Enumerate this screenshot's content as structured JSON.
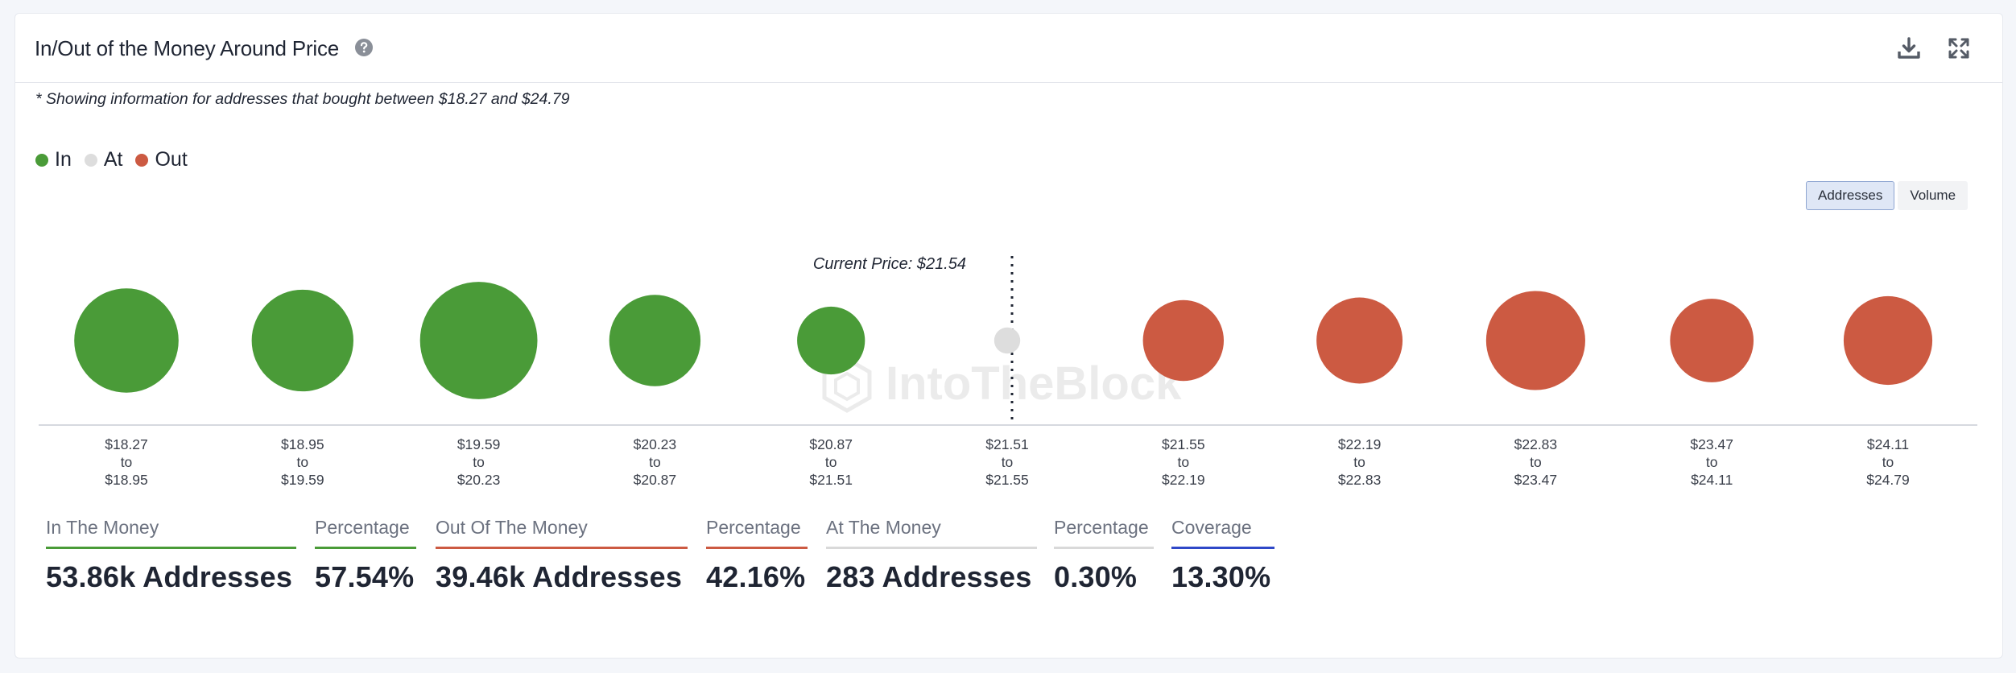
{
  "header": {
    "title": "In/Out of the Money Around Price"
  },
  "note": "* Showing information for addresses that bought between $18.27 and $24.79",
  "legend": [
    {
      "label": "In",
      "color": "#4a9b38"
    },
    {
      "label": "At",
      "color": "#dddddd"
    },
    {
      "label": "Out",
      "color": "#cc5a42"
    }
  ],
  "toggles": {
    "addresses": "Addresses",
    "volume": "Volume"
  },
  "watermark": "IntoTheBlock",
  "chart_data": {
    "type": "bubble",
    "title": "In/Out of the Money Around Price",
    "current_price_label": "Current Price: $21.54",
    "current_price": 21.54,
    "categories": [
      {
        "from": "$18.27",
        "to_word": "to",
        "to": "$18.95",
        "status": "in",
        "relative_size": 40
      },
      {
        "from": "$18.95",
        "to_word": "to",
        "to": "$19.59",
        "status": "in",
        "relative_size": 39
      },
      {
        "from": "$19.59",
        "to_word": "to",
        "to": "$20.23",
        "status": "in",
        "relative_size": 45
      },
      {
        "from": "$20.23",
        "to_word": "to",
        "to": "$20.87",
        "status": "in",
        "relative_size": 35
      },
      {
        "from": "$20.87",
        "to_word": "to",
        "to": "$21.51",
        "status": "in",
        "relative_size": 26
      },
      {
        "from": "$21.51",
        "to_word": "to",
        "to": "$21.55",
        "status": "at",
        "relative_size": 10
      },
      {
        "from": "$21.55",
        "to_word": "to",
        "to": "$22.19",
        "status": "out",
        "relative_size": 31
      },
      {
        "from": "$22.19",
        "to_word": "to",
        "to": "$22.83",
        "status": "out",
        "relative_size": 33
      },
      {
        "from": "$22.83",
        "to_word": "to",
        "to": "$23.47",
        "status": "out",
        "relative_size": 38
      },
      {
        "from": "$23.47",
        "to_word": "to",
        "to": "$24.11",
        "status": "out",
        "relative_size": 32
      },
      {
        "from": "$24.11",
        "to_word": "to",
        "to": "$24.79",
        "status": "out",
        "relative_size": 34
      }
    ],
    "colors": {
      "in": "#4a9b38",
      "at": "#dddddd",
      "out": "#cc5a42"
    }
  },
  "stats": [
    {
      "label": "In The Money",
      "value": "53.86k Addresses",
      "color": "#4a9b38"
    },
    {
      "label": "Percentage",
      "value": "57.54%",
      "color": "#4a9b38"
    },
    {
      "label": "Out Of The Money",
      "value": "39.46k Addresses",
      "color": "#cc5a42"
    },
    {
      "label": "Percentage",
      "value": "42.16%",
      "color": "#cc5a42"
    },
    {
      "label": "At The Money",
      "value": "283 Addresses",
      "color": "#d9d9d9"
    },
    {
      "label": "Percentage",
      "value": "0.30%",
      "color": "#d9d9d9"
    },
    {
      "label": "Coverage",
      "value": "13.30%",
      "color": "#2f48c8"
    }
  ]
}
